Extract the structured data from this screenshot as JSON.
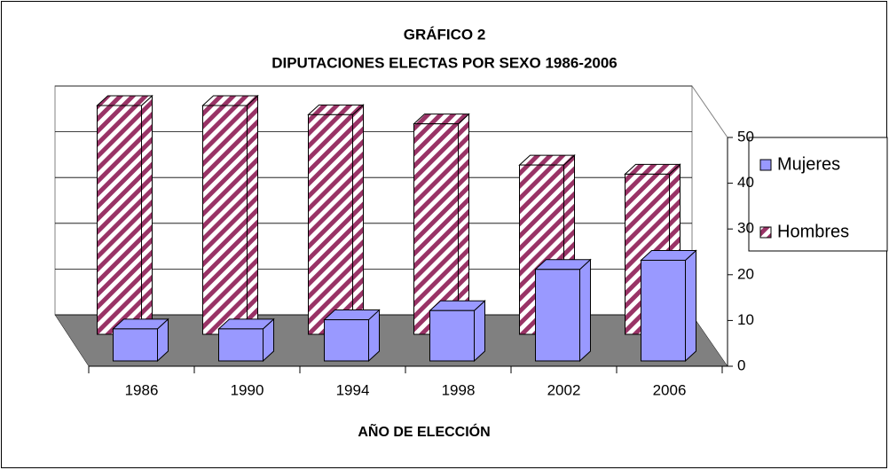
{
  "chart_data": {
    "type": "bar3d",
    "title": "GRÁFICO 2",
    "subtitle": "DIPUTACIONES  ELECTAS POR SEXO 1986-2006",
    "x_label": "AÑO DE ELECCIÓN",
    "categories": [
      "1986",
      "1990",
      "1994",
      "1998",
      "2002",
      "2006"
    ],
    "series": [
      {
        "name": "Mujeres",
        "color": "#9999ff",
        "values": [
          7,
          7,
          9,
          11,
          20,
          22
        ]
      },
      {
        "name": "Hombres",
        "color": "#993366",
        "values": [
          50,
          50,
          48,
          46,
          37,
          35
        ]
      }
    ],
    "ylim": [
      0,
      50
    ],
    "yticks": [
      0,
      10,
      20,
      30,
      40,
      50
    ],
    "grid": true,
    "legend": "right"
  }
}
